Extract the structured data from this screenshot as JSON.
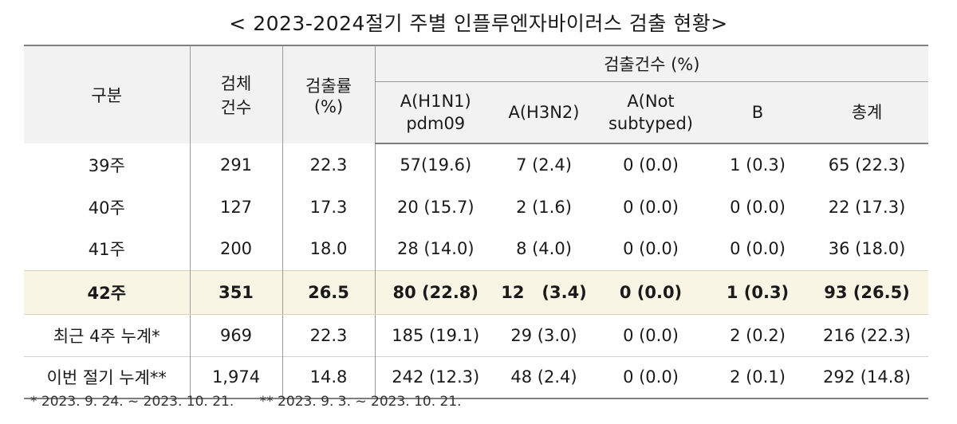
{
  "title": "< 2023-2024절기 주별 인플루엔자바이러스 검출 현황>",
  "header": {
    "col_category": "구분",
    "col_specimens": "검체\n건수",
    "col_rate": "검출률\n(%)",
    "group_label": "검출건수 (%)",
    "sub_h1n1": "A(H1N1)\npdm09",
    "sub_h3n2": "A(H3N2)",
    "sub_not_subtyped": "A(Not\nsubtyped)",
    "sub_b": "B",
    "sub_total": "총계"
  },
  "rows": [
    {
      "label": "39주",
      "specimens": "291",
      "rate": "22.3",
      "h1n1": "57(19.6)",
      "h3n2": "7 (2.4)",
      "not_subtyped": "0 (0.0)",
      "b": "1 (0.3)",
      "total": "65 (22.3)"
    },
    {
      "label": "40주",
      "specimens": "127",
      "rate": "17.3",
      "h1n1": "20 (15.7)",
      "h3n2": "2 (1.6)",
      "not_subtyped": "0 (0.0)",
      "b": "0 (0.0)",
      "total": "22 (17.3)"
    },
    {
      "label": "41주",
      "specimens": "200",
      "rate": "18.0",
      "h1n1": "28 (14.0)",
      "h3n2": "8 (4.0)",
      "not_subtyped": "0 (0.0)",
      "b": "0 (0.0)",
      "total": "36 (18.0)"
    },
    {
      "label": "42주",
      "specimens": "351",
      "rate": "26.5",
      "h1n1": "80 (22.8)",
      "h3n2": "12   (3.4)",
      "not_subtyped": "0 (0.0)",
      "b": "1 (0.3)",
      "total": "93 (26.5)"
    },
    {
      "label": "최근 4주 누계*",
      "specimens": "969",
      "rate": "22.3",
      "h1n1": "185 (19.1)",
      "h3n2": "29 (3.0)",
      "not_subtyped": "0 (0.0)",
      "b": "2 (0.2)",
      "total": "216 (22.3)"
    },
    {
      "label": "이번 절기 누계**",
      "specimens": "1,974",
      "rate": "14.8",
      "h1n1": "242 (12.3)",
      "h3n2": "48 (2.4)",
      "not_subtyped": "0 (0.0)",
      "b": "2 (0.1)",
      "total": "292 (14.8)"
    }
  ],
  "footnote": "* 2023. 9. 24. ~ 2023. 10. 21.      ** 2023. 9. 3. ~ 2023. 10. 21.",
  "colors": {
    "header_bg": "#f2f2f2",
    "highlight_bg": "#f8f5e4"
  }
}
